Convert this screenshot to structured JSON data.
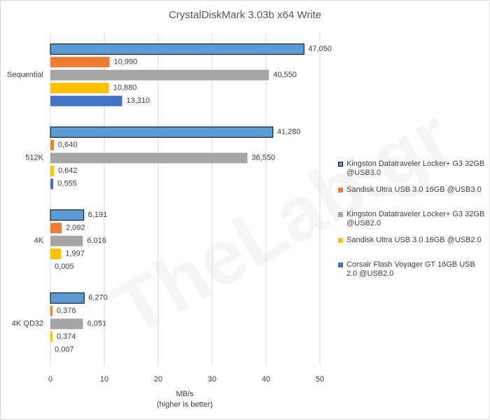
{
  "chart_data": {
    "type": "bar",
    "orientation": "horizontal",
    "title": "CrystalDiskMark 3.03b x64 Write",
    "xlabel": [
      "MB/s",
      "(higher is better)"
    ],
    "watermark": "TheLab.gr",
    "categories": [
      "Sequential",
      "512K",
      "4K",
      "4K QD32"
    ],
    "xlim": [
      0,
      50
    ],
    "xticks": [
      0,
      10,
      20,
      30,
      40,
      50
    ],
    "grid": true,
    "legend": "right",
    "series": [
      {
        "name": "Kingston Datatraveler Locker+ G3 32GB @USB3.0",
        "color": "#5b9bd5",
        "edgecolor": "#000000",
        "values": [
          47.05,
          41.28,
          6.191,
          6.27
        ],
        "value_labels": [
          "47,050",
          "41,280",
          "6,191",
          "6,270"
        ]
      },
      {
        "name": "Sandisk Ultra USB 3.0 16GB @USB3.0",
        "color": "#ed7d31",
        "values": [
          10.99,
          0.64,
          2.092,
          0.378
        ],
        "value_labels": [
          "10,990",
          "0,640",
          "2,092",
          "0,378"
        ]
      },
      {
        "name": "Kingston Datatraveler Locker+ G3 32GB @USB2.0",
        "color": "#a5a5a5",
        "values": [
          40.55,
          36.55,
          6.016,
          6.051
        ],
        "value_labels": [
          "40,550",
          "36,550",
          "6,016",
          "6,051"
        ]
      },
      {
        "name": "Sandisk Ultra USB 3.0 16GB @USB2.0",
        "color": "#ffc000",
        "values": [
          10.88,
          0.642,
          1.997,
          0.374
        ],
        "value_labels": [
          "10,880",
          "0,642",
          "1,997",
          "0,374"
        ]
      },
      {
        "name": "Corsair Flash Voyager GT 16GB USB 2.0 @USB2.0",
        "color": "#4472c4",
        "values": [
          13.31,
          0.555,
          0.005,
          0.007
        ],
        "value_labels": [
          "13,310",
          "0,555",
          "0,005",
          "0,007"
        ]
      }
    ]
  }
}
